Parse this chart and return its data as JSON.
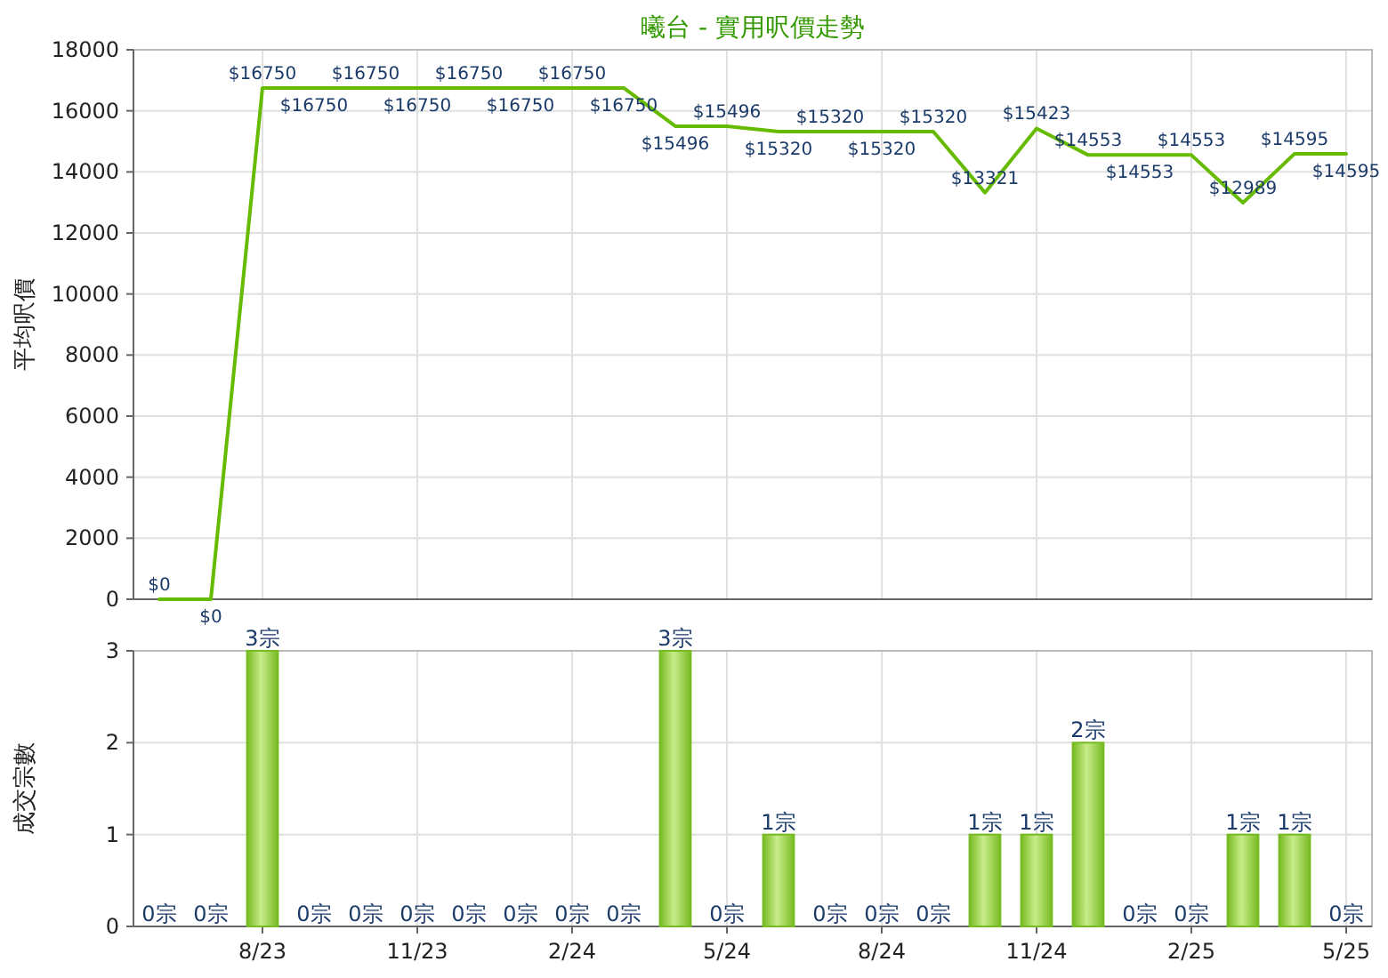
{
  "chart_data": [
    {
      "type": "line",
      "title": "曦台 - 實用呎價走勢",
      "ylabel": "平均呎價",
      "categories": [
        null,
        null,
        null,
        null,
        null,
        null,
        null,
        null,
        null,
        null,
        null,
        null,
        null,
        null,
        null,
        null,
        null,
        null,
        null,
        null,
        null,
        null,
        null,
        null
      ],
      "series": [
        {
          "color": "#66bb00",
          "values": [
            0,
            0,
            16750,
            16750,
            16750,
            16750,
            16750,
            16750,
            16750,
            16750,
            15496,
            15496,
            15320,
            15320,
            15320,
            15320,
            13321,
            15423,
            14553,
            14553,
            14553,
            12989,
            14595,
            14595
          ],
          "value_labels": [
            "$0",
            "$0",
            "$16750",
            "$16750",
            "$16750",
            "$16750",
            "$16750",
            "$16750",
            "$16750",
            "$16750",
            "$15496",
            "$15496",
            "$15320",
            "$15320",
            "$15320",
            "$15320",
            "$13321",
            "$15423",
            "$14553",
            "$14553",
            "$14553",
            "$12989",
            "$14595",
            "$14595"
          ]
        }
      ],
      "ylim": [
        0,
        18000
      ],
      "yticks": [
        0,
        2000,
        4000,
        6000,
        8000,
        10000,
        12000,
        14000,
        16000,
        18000
      ],
      "grid": true,
      "tick_labels": "y"
    },
    {
      "type": "bar",
      "ylabel": "成交宗數",
      "categories": [
        null,
        null,
        "8/23",
        null,
        null,
        "11/23",
        null,
        null,
        "2/24",
        null,
        null,
        "5/24",
        null,
        null,
        "8/24",
        null,
        null,
        "11/24",
        null,
        null,
        "2/25",
        null,
        null,
        "5/25"
      ],
      "values": [
        0,
        0,
        3,
        0,
        0,
        0,
        0,
        0,
        0,
        0,
        3,
        0,
        1,
        0,
        0,
        0,
        1,
        1,
        2,
        0,
        0,
        1,
        1,
        0
      ],
      "value_labels": [
        "0宗",
        "0宗",
        "3宗",
        "0宗",
        "0宗",
        "0宗",
        "0宗",
        "0宗",
        "0宗",
        "0宗",
        "3宗",
        "0宗",
        "1宗",
        "0宗",
        "0宗",
        "0宗",
        "1宗",
        "1宗",
        "2宗",
        "0宗",
        "0宗",
        "1宗",
        "1宗",
        "0宗"
      ],
      "color": "#77bb22",
      "ylim": [
        0,
        3
      ],
      "yticks": [
        0,
        1,
        2,
        3
      ],
      "grid": true
    }
  ]
}
